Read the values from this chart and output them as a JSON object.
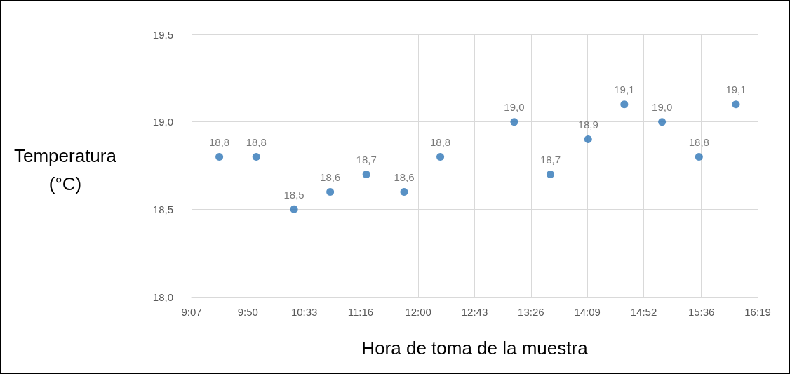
{
  "chart_data": {
    "type": "scatter",
    "xlabel": "Hora de toma de la muestra",
    "ylabel": "Temperatura\n(°C)",
    "x": [
      9.47,
      9.94,
      10.42,
      10.88,
      11.34,
      11.82,
      12.28,
      13.22,
      13.68,
      14.16,
      14.62,
      15.1,
      15.57,
      16.04
    ],
    "values": [
      18.8,
      18.8,
      18.5,
      18.6,
      18.7,
      18.6,
      18.8,
      19.0,
      18.7,
      18.9,
      19.1,
      19.0,
      18.8,
      19.1
    ],
    "value_labels": [
      "18,8",
      "18,8",
      "18,5",
      "18,6",
      "18,7",
      "18,6",
      "18,8",
      "19,0",
      "18,7",
      "18,9",
      "19,1",
      "19,0",
      "18,8",
      "19,1"
    ],
    "color": "#2e75b6",
    "marker": "circle",
    "grid": true,
    "xlim": [
      9.1167,
      16.3167
    ],
    "xticks": [
      {
        "value": 9.1167,
        "label": "9:07"
      },
      {
        "value": 9.8333,
        "label": "9:50"
      },
      {
        "value": 10.55,
        "label": "10:33"
      },
      {
        "value": 11.2667,
        "label": "11:16"
      },
      {
        "value": 12.0,
        "label": "12:00"
      },
      {
        "value": 12.7167,
        "label": "12:43"
      },
      {
        "value": 13.4333,
        "label": "13:26"
      },
      {
        "value": 14.15,
        "label": "14:09"
      },
      {
        "value": 14.8667,
        "label": "14:52"
      },
      {
        "value": 15.6,
        "label": "15:36"
      },
      {
        "value": 16.3167,
        "label": "16:19"
      }
    ],
    "ylim": [
      18.0,
      19.5
    ],
    "yticks": [
      {
        "value": 18.0,
        "label": "18,0"
      },
      {
        "value": 18.5,
        "label": "18,5"
      },
      {
        "value": 19.0,
        "label": "19,0"
      },
      {
        "value": 19.5,
        "label": "19,5"
      }
    ]
  }
}
